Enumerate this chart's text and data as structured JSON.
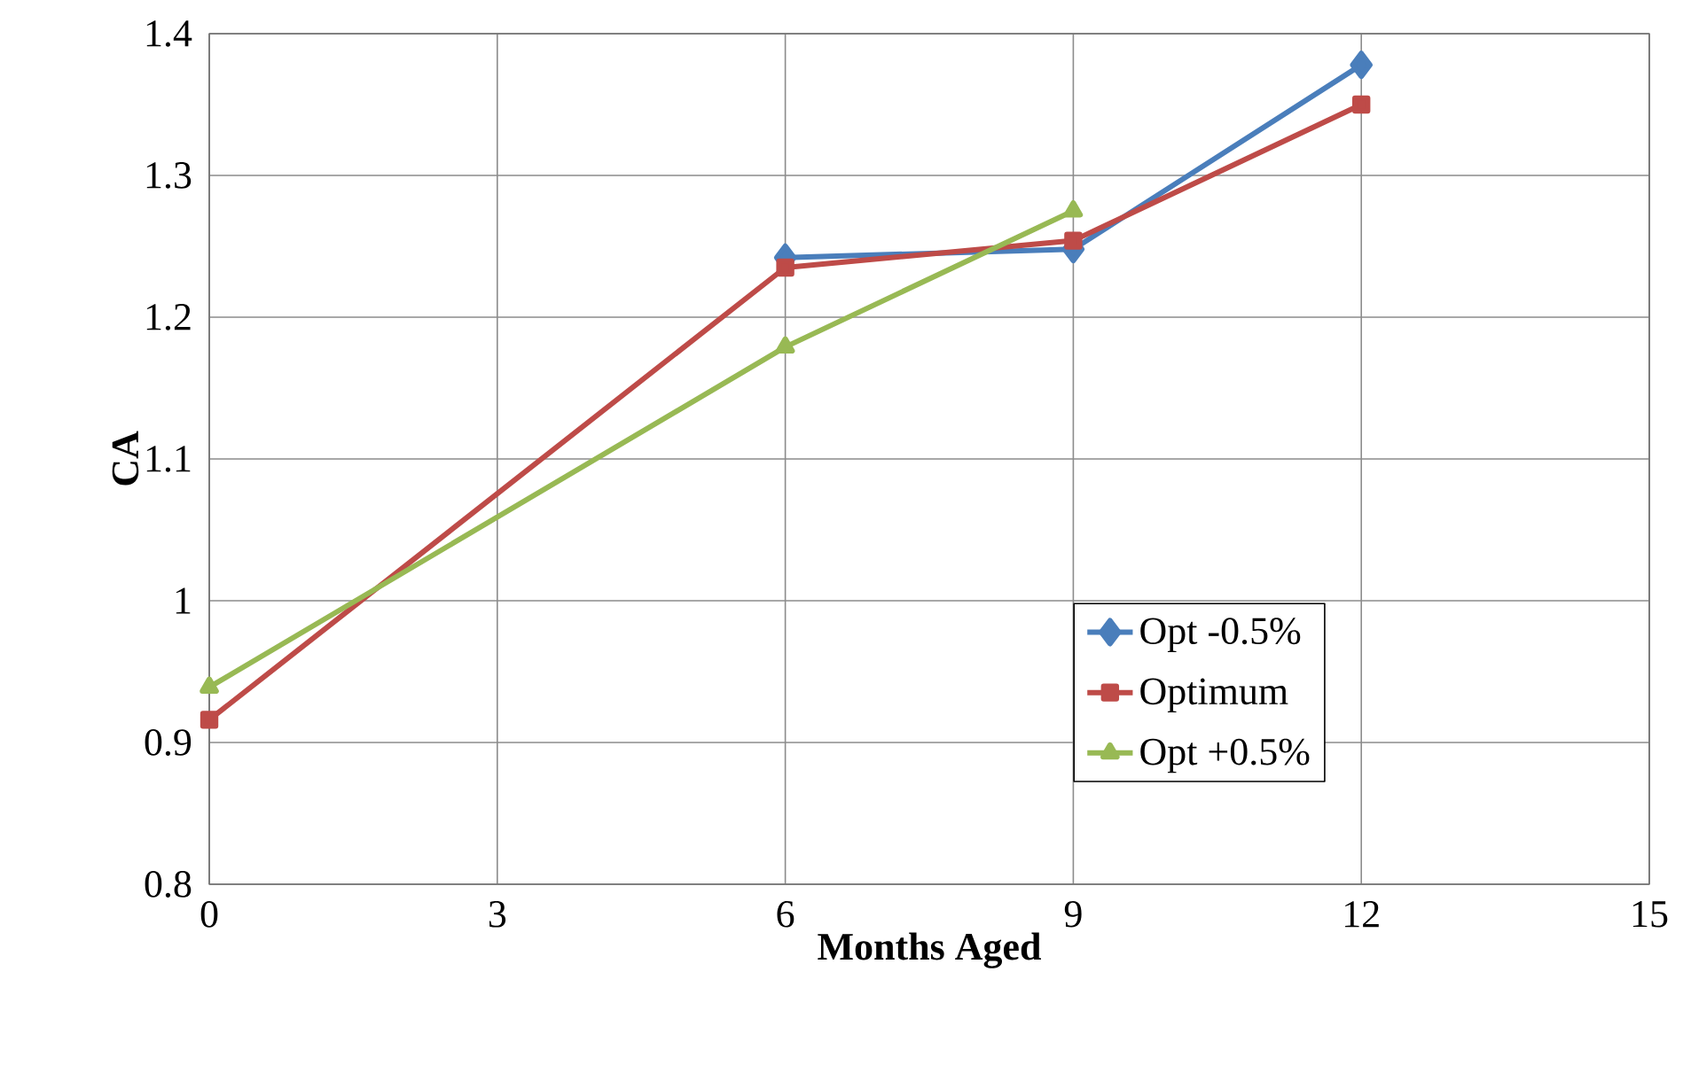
{
  "chart_data": {
    "type": "line",
    "xlabel": "Months Aged",
    "ylabel": "CA",
    "x": [
      0,
      6,
      9,
      12
    ],
    "xlim": [
      0,
      15
    ],
    "xticks": [
      0,
      3,
      6,
      9,
      12,
      15
    ],
    "ylim": [
      0.8,
      1.4
    ],
    "yticks": [
      0.8,
      0.9,
      1,
      1.1,
      1.2,
      1.3,
      1.4
    ],
    "grid": true,
    "legend": "right",
    "series": [
      {
        "name": "Opt -0.5%",
        "color": "#4a7ebb",
        "marker": "diamond",
        "values": [
          null,
          1.242,
          1.248,
          1.378
        ]
      },
      {
        "name": "Optimum",
        "color": "#be4b48",
        "marker": "square",
        "values": [
          0.916,
          1.235,
          1.254,
          1.35
        ]
      },
      {
        "name": "Opt +0.5%",
        "color": "#98b954",
        "marker": "triangle",
        "values": [
          0.939,
          1.179,
          1.275,
          null
        ]
      }
    ]
  }
}
